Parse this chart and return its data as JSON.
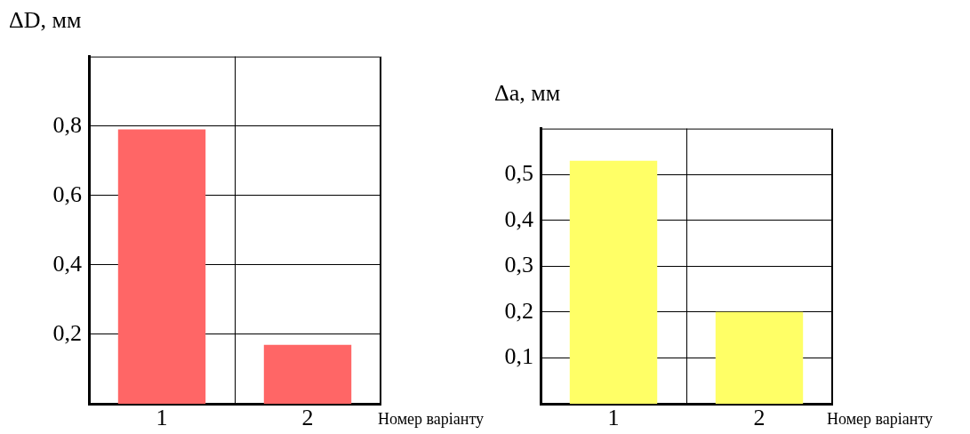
{
  "chart_data": [
    {
      "type": "bar",
      "ylabel": "ΔD, мм",
      "xlabel": "Номер варіанту",
      "categories": [
        "1",
        "2"
      ],
      "values": [
        0.79,
        0.17
      ],
      "color": "#ff6666",
      "ylim": [
        0,
        1
      ],
      "yticks": [
        {
          "value": 0.2,
          "label": "0,2"
        },
        {
          "value": 0.4,
          "label": "0,4"
        },
        {
          "value": 0.6,
          "label": "0,6"
        },
        {
          "value": 0.8,
          "label": "0,8"
        }
      ],
      "grid": true
    },
    {
      "type": "bar",
      "ylabel": "Δa, мм",
      "xlabel": "Номер варіанту",
      "categories": [
        "1",
        "2"
      ],
      "values": [
        0.53,
        0.2
      ],
      "color": "#ffff66",
      "ylim": [
        0,
        0.6
      ],
      "yticks": [
        {
          "value": 0.1,
          "label": "0,1"
        },
        {
          "value": 0.2,
          "label": "0,2"
        },
        {
          "value": 0.3,
          "label": "0,3"
        },
        {
          "value": 0.4,
          "label": "0,4"
        },
        {
          "value": 0.5,
          "label": "0,5"
        }
      ],
      "grid": true
    }
  ]
}
